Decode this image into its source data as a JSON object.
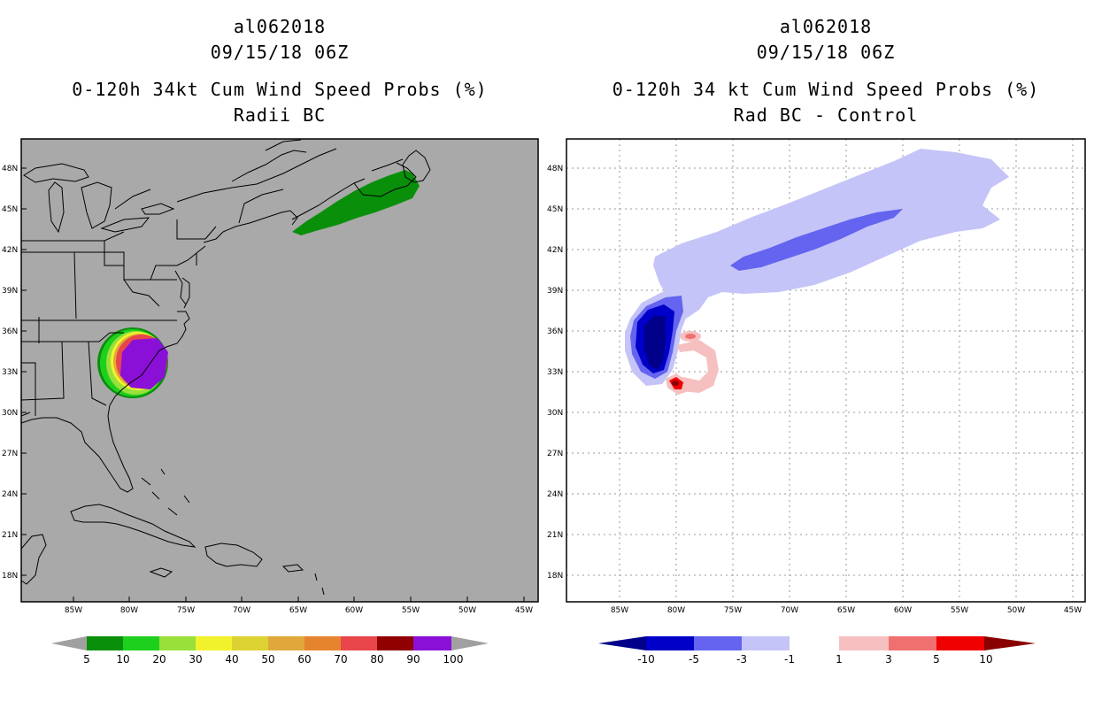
{
  "left_panel": {
    "storm_id": "al062018",
    "datetime": "09/15/18 06Z",
    "product": "0-120h 34kt Cum Wind Speed Probs (%)",
    "subtitle": "Radii BC",
    "colorbar": {
      "labels": [
        "5",
        "10",
        "20",
        "30",
        "40",
        "50",
        "60",
        "70",
        "80",
        "90",
        "100"
      ],
      "colors": [
        "#0a8f0a",
        "#1ed01e",
        "#9ae03a",
        "#f2f22c",
        "#dcd232",
        "#e0a83a",
        "#e6842e",
        "#e8464a",
        "#900000",
        "#8a10d8"
      ],
      "end_color": "#a0a0a0"
    },
    "background_color": "#a9a9a9"
  },
  "right_panel": {
    "storm_id": "al062018",
    "datetime": "09/15/18 06Z",
    "product": "0-120h 34 kt Cum Wind Speed Probs (%)",
    "subtitle": "Rad BC - Control",
    "colorbar": {
      "labels": [
        "-10",
        "-5",
        "-3",
        "-1",
        "1",
        "3",
        "5",
        "10"
      ],
      "colors": [
        "#0000c8",
        "#6464f0",
        "#c4c4f8",
        "#ffffff",
        "#f6c0c0",
        "#f07070",
        "#f00000"
      ],
      "low_end_color": "#00008a",
      "high_end_color": "#8a0000"
    }
  },
  "map_axes": {
    "lon_labels": [
      "85W",
      "80W",
      "75W",
      "70W",
      "65W",
      "60W",
      "55W",
      "50W",
      "45W"
    ],
    "lat_labels": [
      "48N",
      "45N",
      "42N",
      "39N",
      "36N",
      "33N",
      "30N",
      "27N",
      "24N",
      "21N",
      "18N"
    ]
  }
}
